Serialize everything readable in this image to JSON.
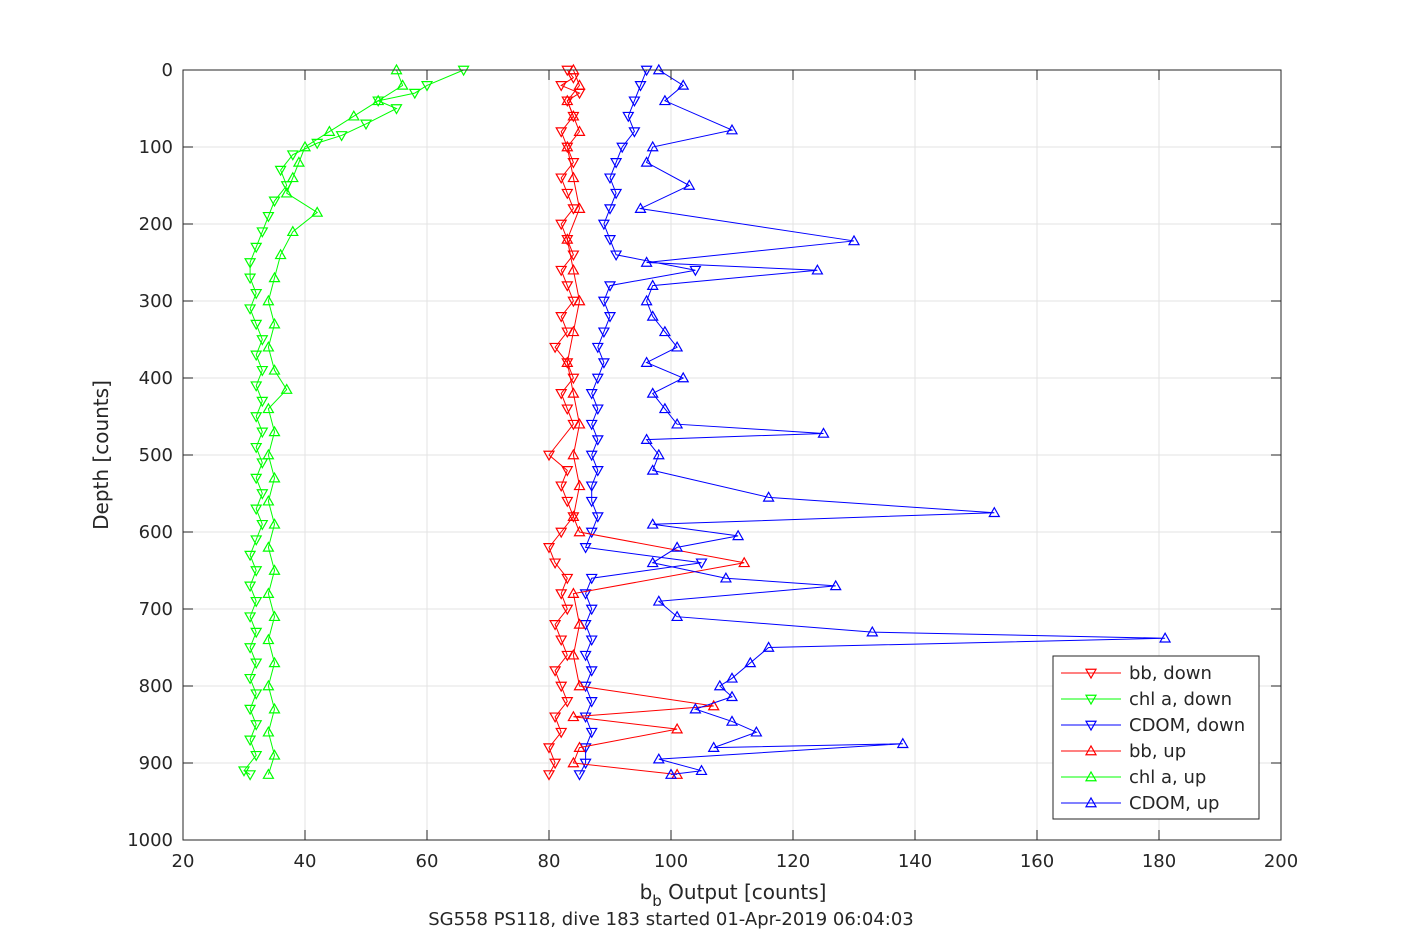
{
  "chart_data": {
    "type": "scatter",
    "title": "",
    "caption": "SG558 PS118, dive 183 started 01-Apr-2019 06:04:03",
    "xlabel_main": "b",
    "xlabel_sub": "b",
    "xlabel_rest": " Output [counts]",
    "ylabel": "Depth [counts]",
    "xlim": [
      20,
      200
    ],
    "ylim": [
      0,
      1000
    ],
    "y_reversed": true,
    "grid": true,
    "legend_position": "bottom-right",
    "xticks": [
      20,
      40,
      60,
      80,
      100,
      120,
      140,
      160,
      180,
      200
    ],
    "yticks": [
      0,
      100,
      200,
      300,
      400,
      500,
      600,
      700,
      800,
      900,
      1000
    ],
    "series": [
      {
        "name": "bb, down",
        "color": "#ff0000",
        "marker": "triangle-down",
        "points": [
          [
            83,
            0
          ],
          [
            84,
            10
          ],
          [
            82,
            20
          ],
          [
            85,
            30
          ],
          [
            83,
            40
          ],
          [
            84,
            60
          ],
          [
            82,
            80
          ],
          [
            83,
            100
          ],
          [
            84,
            120
          ],
          [
            82,
            140
          ],
          [
            83,
            160
          ],
          [
            84,
            180
          ],
          [
            82,
            200
          ],
          [
            83,
            220
          ],
          [
            84,
            240
          ],
          [
            82,
            260
          ],
          [
            83,
            280
          ],
          [
            84,
            300
          ],
          [
            82,
            320
          ],
          [
            83,
            340
          ],
          [
            81,
            360
          ],
          [
            83,
            380
          ],
          [
            84,
            400
          ],
          [
            82,
            420
          ],
          [
            83,
            440
          ],
          [
            84,
            460
          ],
          [
            80,
            500
          ],
          [
            83,
            520
          ],
          [
            82,
            540
          ],
          [
            83,
            560
          ],
          [
            84,
            580
          ],
          [
            82,
            600
          ],
          [
            80,
            620
          ],
          [
            81,
            640
          ],
          [
            83,
            660
          ],
          [
            82,
            680
          ],
          [
            83,
            700
          ],
          [
            81,
            720
          ],
          [
            82,
            740
          ],
          [
            83,
            760
          ],
          [
            81,
            780
          ],
          [
            82,
            800
          ],
          [
            83,
            820
          ],
          [
            81,
            840
          ],
          [
            82,
            860
          ],
          [
            80,
            880
          ],
          [
            81,
            900
          ],
          [
            80,
            915
          ]
        ]
      },
      {
        "name": "chl a, down",
        "color": "#00ff00",
        "marker": "triangle-down",
        "points": [
          [
            66,
            0
          ],
          [
            60,
            20
          ],
          [
            58,
            30
          ],
          [
            52,
            40
          ],
          [
            55,
            50
          ],
          [
            50,
            70
          ],
          [
            46,
            85
          ],
          [
            42,
            95
          ],
          [
            38,
            110
          ],
          [
            36,
            130
          ],
          [
            37,
            150
          ],
          [
            35,
            170
          ],
          [
            34,
            190
          ],
          [
            33,
            210
          ],
          [
            32,
            230
          ],
          [
            31,
            250
          ],
          [
            31,
            270
          ],
          [
            32,
            290
          ],
          [
            31,
            310
          ],
          [
            32,
            330
          ],
          [
            33,
            350
          ],
          [
            32,
            370
          ],
          [
            33,
            390
          ],
          [
            32,
            410
          ],
          [
            33,
            430
          ],
          [
            32,
            450
          ],
          [
            33,
            470
          ],
          [
            32,
            490
          ],
          [
            33,
            510
          ],
          [
            32,
            530
          ],
          [
            33,
            550
          ],
          [
            32,
            570
          ],
          [
            33,
            590
          ],
          [
            32,
            610
          ],
          [
            31,
            630
          ],
          [
            32,
            650
          ],
          [
            31,
            670
          ],
          [
            32,
            690
          ],
          [
            31,
            710
          ],
          [
            32,
            730
          ],
          [
            31,
            750
          ],
          [
            32,
            770
          ],
          [
            31,
            790
          ],
          [
            32,
            810
          ],
          [
            31,
            830
          ],
          [
            32,
            850
          ],
          [
            31,
            870
          ],
          [
            32,
            890
          ],
          [
            30,
            910
          ],
          [
            31,
            915
          ]
        ]
      },
      {
        "name": "CDOM, down",
        "color": "#0000ff",
        "marker": "triangle-down",
        "points": [
          [
            96,
            0
          ],
          [
            95,
            20
          ],
          [
            94,
            40
          ],
          [
            93,
            60
          ],
          [
            94,
            80
          ],
          [
            92,
            100
          ],
          [
            91,
            120
          ],
          [
            90,
            140
          ],
          [
            91,
            160
          ],
          [
            90,
            180
          ],
          [
            89,
            200
          ],
          [
            90,
            220
          ],
          [
            91,
            240
          ],
          [
            104,
            260
          ],
          [
            90,
            280
          ],
          [
            89,
            300
          ],
          [
            90,
            320
          ],
          [
            89,
            340
          ],
          [
            88,
            360
          ],
          [
            89,
            380
          ],
          [
            88,
            400
          ],
          [
            87,
            420
          ],
          [
            88,
            440
          ],
          [
            87,
            460
          ],
          [
            88,
            480
          ],
          [
            87,
            500
          ],
          [
            88,
            520
          ],
          [
            87,
            540
          ],
          [
            87,
            560
          ],
          [
            88,
            580
          ],
          [
            87,
            600
          ],
          [
            86,
            620
          ],
          [
            105,
            640
          ],
          [
            87,
            660
          ],
          [
            86,
            680
          ],
          [
            87,
            700
          ],
          [
            86,
            720
          ],
          [
            87,
            740
          ],
          [
            86,
            760
          ],
          [
            87,
            780
          ],
          [
            86,
            800
          ],
          [
            87,
            820
          ],
          [
            86,
            840
          ],
          [
            87,
            860
          ],
          [
            86,
            880
          ],
          [
            86,
            900
          ],
          [
            85,
            915
          ]
        ]
      },
      {
        "name": "bb, up",
        "color": "#ff0000",
        "marker": "triangle-up",
        "points": [
          [
            84,
            0
          ],
          [
            85,
            20
          ],
          [
            83,
            40
          ],
          [
            84,
            60
          ],
          [
            85,
            80
          ],
          [
            83,
            100
          ],
          [
            84,
            140
          ],
          [
            85,
            180
          ],
          [
            83,
            220
          ],
          [
            84,
            260
          ],
          [
            85,
            300
          ],
          [
            84,
            340
          ],
          [
            83,
            380
          ],
          [
            84,
            420
          ],
          [
            85,
            460
          ],
          [
            84,
            500
          ],
          [
            85,
            540
          ],
          [
            84,
            580
          ],
          [
            85,
            600
          ],
          [
            112,
            640
          ],
          [
            84,
            680
          ],
          [
            85,
            720
          ],
          [
            84,
            760
          ],
          [
            85,
            800
          ],
          [
            107,
            826
          ],
          [
            84,
            840
          ],
          [
            101,
            856
          ],
          [
            85,
            880
          ],
          [
            84,
            900
          ],
          [
            101,
            915
          ]
        ]
      },
      {
        "name": "chl a, up",
        "color": "#00ff00",
        "marker": "triangle-up",
        "points": [
          [
            55,
            0
          ],
          [
            56,
            20
          ],
          [
            52,
            40
          ],
          [
            48,
            60
          ],
          [
            44,
            80
          ],
          [
            40,
            100
          ],
          [
            39,
            120
          ],
          [
            38,
            140
          ],
          [
            37,
            160
          ],
          [
            42,
            185
          ],
          [
            38,
            210
          ],
          [
            36,
            240
          ],
          [
            35,
            270
          ],
          [
            34,
            300
          ],
          [
            35,
            330
          ],
          [
            34,
            360
          ],
          [
            35,
            390
          ],
          [
            37,
            415
          ],
          [
            34,
            440
          ],
          [
            35,
            470
          ],
          [
            34,
            500
          ],
          [
            35,
            530
          ],
          [
            34,
            560
          ],
          [
            35,
            590
          ],
          [
            34,
            620
          ],
          [
            35,
            650
          ],
          [
            34,
            680
          ],
          [
            35,
            710
          ],
          [
            34,
            740
          ],
          [
            35,
            770
          ],
          [
            34,
            800
          ],
          [
            35,
            830
          ],
          [
            34,
            860
          ],
          [
            35,
            890
          ],
          [
            34,
            915
          ]
        ]
      },
      {
        "name": "CDOM, up",
        "color": "#0000ff",
        "marker": "triangle-up",
        "points": [
          [
            98,
            0
          ],
          [
            102,
            20
          ],
          [
            99,
            40
          ],
          [
            110,
            78
          ],
          [
            97,
            100
          ],
          [
            96,
            120
          ],
          [
            103,
            150
          ],
          [
            95,
            180
          ],
          [
            130,
            222
          ],
          [
            96,
            250
          ],
          [
            124,
            260
          ],
          [
            97,
            280
          ],
          [
            96,
            300
          ],
          [
            97,
            320
          ],
          [
            99,
            340
          ],
          [
            101,
            360
          ],
          [
            96,
            380
          ],
          [
            102,
            400
          ],
          [
            97,
            420
          ],
          [
            99,
            440
          ],
          [
            101,
            460
          ],
          [
            125,
            472
          ],
          [
            96,
            480
          ],
          [
            98,
            500
          ],
          [
            97,
            520
          ],
          [
            116,
            555
          ],
          [
            153,
            575
          ],
          [
            97,
            590
          ],
          [
            111,
            605
          ],
          [
            101,
            620
          ],
          [
            97,
            640
          ],
          [
            109,
            660
          ],
          [
            127,
            670
          ],
          [
            98,
            690
          ],
          [
            101,
            710
          ],
          [
            133,
            730
          ],
          [
            181,
            738
          ],
          [
            116,
            750
          ],
          [
            113,
            770
          ],
          [
            110,
            790
          ],
          [
            108,
            800
          ],
          [
            110,
            814
          ],
          [
            104,
            830
          ],
          [
            110,
            846
          ],
          [
            114,
            860
          ],
          [
            107,
            880
          ],
          [
            138,
            875
          ],
          [
            98,
            895
          ],
          [
            105,
            910
          ],
          [
            100,
            915
          ]
        ]
      }
    ]
  }
}
